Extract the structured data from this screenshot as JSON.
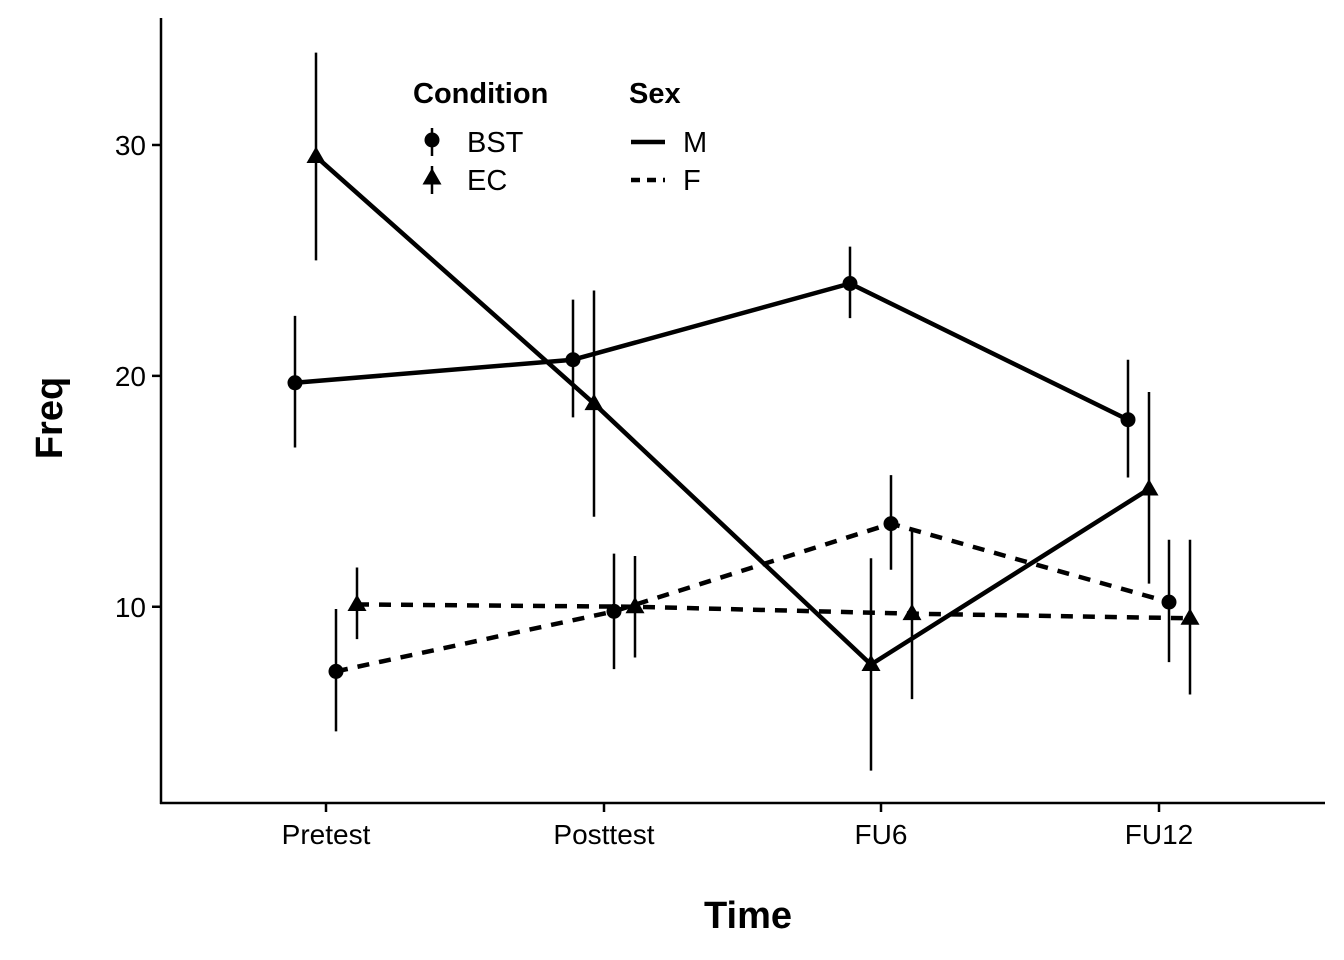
{
  "chart_data": {
    "type": "line",
    "xlabel": "Time",
    "ylabel": "Freq",
    "categories": [
      "Pretest",
      "Posttest",
      "FU6",
      "FU12"
    ],
    "ylim": [
      1.5,
      35.5
    ],
    "yticks": [
      10,
      20,
      30
    ],
    "grid": false,
    "legend": {
      "placement": "top-left",
      "groups": [
        {
          "title": "Condition",
          "entries": [
            {
              "label": "BST",
              "shape": "circle"
            },
            {
              "label": "EC",
              "shape": "triangle"
            }
          ]
        },
        {
          "title": "Sex",
          "entries": [
            {
              "label": "M",
              "linetype": "solid"
            },
            {
              "label": "F",
              "linetype": "dashed"
            }
          ]
        }
      ]
    },
    "series": [
      {
        "condition": "BST",
        "sex": "M",
        "values": [
          19.7,
          20.7,
          24.0,
          18.1
        ],
        "lower": [
          16.9,
          18.2,
          22.5,
          15.6
        ],
        "upper": [
          22.6,
          23.3,
          25.6,
          20.7
        ]
      },
      {
        "condition": "EC",
        "sex": "M",
        "values": [
          29.5,
          18.8,
          7.5,
          15.1
        ],
        "lower": [
          25.0,
          13.9,
          2.9,
          11.0
        ],
        "upper": [
          34.0,
          23.7,
          12.1,
          19.3
        ]
      },
      {
        "condition": "BST",
        "sex": "F",
        "values": [
          7.2,
          9.8,
          13.6,
          10.2
        ],
        "lower": [
          4.6,
          7.3,
          11.6,
          7.6
        ],
        "upper": [
          9.9,
          12.3,
          15.7,
          12.9
        ]
      },
      {
        "condition": "EC",
        "sex": "F",
        "values": [
          10.1,
          10.0,
          9.7,
          9.5
        ],
        "lower": [
          8.6,
          7.8,
          6.0,
          6.2
        ],
        "upper": [
          11.7,
          12.2,
          13.4,
          12.9
        ]
      }
    ]
  }
}
